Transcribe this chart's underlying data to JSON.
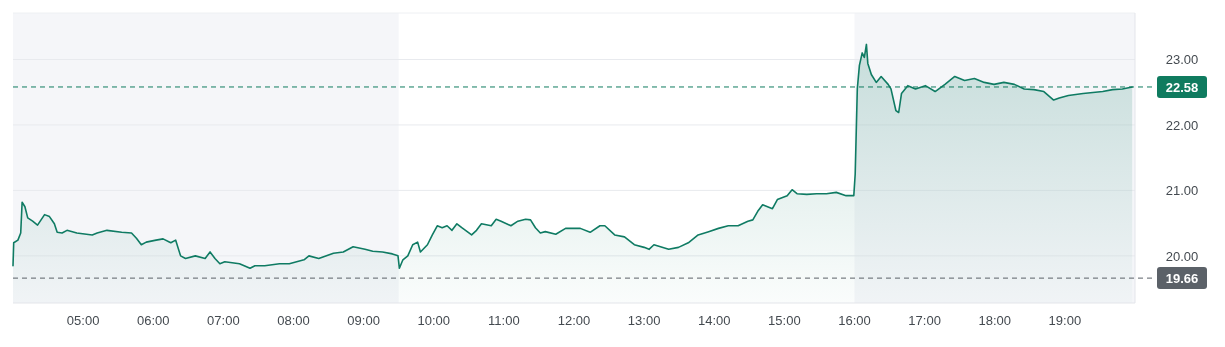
{
  "chart_data": {
    "type": "area",
    "xlim": [
      4,
      20
    ],
    "xticks": [
      {
        "value": 5,
        "label": "05:00"
      },
      {
        "value": 6,
        "label": "06:00"
      },
      {
        "value": 7,
        "label": "07:00"
      },
      {
        "value": 8,
        "label": "08:00"
      },
      {
        "value": 9,
        "label": "09:00"
      },
      {
        "value": 10,
        "label": "10:00"
      },
      {
        "value": 11,
        "label": "11:00"
      },
      {
        "value": 12,
        "label": "12:00"
      },
      {
        "value": 13,
        "label": "13:00"
      },
      {
        "value": 14,
        "label": "14:00"
      },
      {
        "value": 15,
        "label": "15:00"
      },
      {
        "value": 16,
        "label": "16:00"
      },
      {
        "value": 17,
        "label": "17:00"
      },
      {
        "value": 18,
        "label": "18:00"
      },
      {
        "value": 19,
        "label": "19:00"
      }
    ],
    "ylim": [
      19.28,
      23.71
    ],
    "yticks": [
      {
        "value": 20,
        "label": "20.00"
      },
      {
        "value": 21,
        "label": "21.00"
      },
      {
        "value": 22,
        "label": "22.00"
      },
      {
        "value": 23,
        "label": "23.00"
      }
    ],
    "grid": "y",
    "bands": [
      {
        "axis": "x",
        "from": 4,
        "to": 9.5,
        "color": "#f5f6f9"
      },
      {
        "axis": "x",
        "from": 16,
        "to": 20,
        "color": "#f5f6f9"
      }
    ],
    "ref_lines": [
      {
        "axis": "y",
        "value": 22.58,
        "label": "22.58",
        "color": "#0f7b5f"
      },
      {
        "axis": "y",
        "value": 19.66,
        "label": "19.66",
        "color": "#5b6168"
      }
    ],
    "series": [
      {
        "color": "#0f7b63",
        "x": [
          4.0,
          4.01,
          4.07,
          4.11,
          4.13,
          4.17,
          4.21,
          4.28,
          4.35,
          4.45,
          4.52,
          4.59,
          4.63,
          4.7,
          4.77,
          4.91,
          5.13,
          5.2,
          5.34,
          5.55,
          5.69,
          5.76,
          5.83,
          5.9,
          6.04,
          6.14,
          6.25,
          6.32,
          6.39,
          6.46,
          6.6,
          6.74,
          6.81,
          6.88,
          6.95,
          7.02,
          7.23,
          7.38,
          7.45,
          7.59,
          7.8,
          7.94,
          8.15,
          8.22,
          8.36,
          8.57,
          8.71,
          8.85,
          9.02,
          9.13,
          9.27,
          9.41,
          9.49,
          9.51,
          9.56,
          9.63,
          9.7,
          9.77,
          9.81,
          9.91,
          9.98,
          10.05,
          10.12,
          10.19,
          10.26,
          10.33,
          10.4,
          10.54,
          10.61,
          10.68,
          10.82,
          10.89,
          10.96,
          11.1,
          11.2,
          11.31,
          11.38,
          11.45,
          11.52,
          11.59,
          11.74,
          11.88,
          12.09,
          12.23,
          12.37,
          12.44,
          12.58,
          12.72,
          12.86,
          13.0,
          13.07,
          13.14,
          13.35,
          13.49,
          13.63,
          13.77,
          13.92,
          14.06,
          14.2,
          14.34,
          14.48,
          14.55,
          14.62,
          14.69,
          14.76,
          14.83,
          14.9,
          15.04,
          15.11,
          15.18,
          15.32,
          15.46,
          15.6,
          15.74,
          15.88,
          15.99,
          16.01,
          16.04,
          16.07,
          16.11,
          16.14,
          16.17,
          16.19,
          16.24,
          16.31,
          16.38,
          16.48,
          16.52,
          16.59,
          16.63,
          16.67,
          16.76,
          16.87,
          17.01,
          17.15,
          17.29,
          17.43,
          17.57,
          17.71,
          17.85,
          17.99,
          18.13,
          18.28,
          18.42,
          18.56,
          18.7,
          18.84,
          18.92,
          19.05,
          19.26,
          19.54,
          19.68,
          19.82,
          19.96
        ],
        "values": [
          19.85,
          20.2,
          20.24,
          20.35,
          20.82,
          20.75,
          20.58,
          20.53,
          20.47,
          20.63,
          20.6,
          20.49,
          20.36,
          20.35,
          20.39,
          20.35,
          20.32,
          20.35,
          20.39,
          20.36,
          20.35,
          20.27,
          20.17,
          20.21,
          20.24,
          20.26,
          20.2,
          20.24,
          20.0,
          19.96,
          20.0,
          19.96,
          20.06,
          19.96,
          19.88,
          19.91,
          19.88,
          19.81,
          19.85,
          19.85,
          19.88,
          19.88,
          19.94,
          20.0,
          19.96,
          20.04,
          20.06,
          20.14,
          20.1,
          20.07,
          20.06,
          20.03,
          20.0,
          19.81,
          19.94,
          20.0,
          20.17,
          20.21,
          20.06,
          20.17,
          20.32,
          20.46,
          20.43,
          20.46,
          20.39,
          20.49,
          20.43,
          20.32,
          20.39,
          20.49,
          20.46,
          20.56,
          20.53,
          20.46,
          20.53,
          20.56,
          20.55,
          20.43,
          20.35,
          20.37,
          20.33,
          20.42,
          20.42,
          20.36,
          20.46,
          20.46,
          20.32,
          20.29,
          20.17,
          20.13,
          20.1,
          20.17,
          20.1,
          20.13,
          20.2,
          20.32,
          20.37,
          20.42,
          20.46,
          20.46,
          20.53,
          20.55,
          20.68,
          20.78,
          20.75,
          20.72,
          20.86,
          20.92,
          21.01,
          20.95,
          20.94,
          20.95,
          20.95,
          20.97,
          20.92,
          20.92,
          21.25,
          22.55,
          22.91,
          23.1,
          23.03,
          23.23,
          22.94,
          22.77,
          22.65,
          22.74,
          22.62,
          22.55,
          22.22,
          22.19,
          22.48,
          22.6,
          22.55,
          22.6,
          22.51,
          22.62,
          22.74,
          22.68,
          22.71,
          22.65,
          22.62,
          22.65,
          22.62,
          22.55,
          22.54,
          22.51,
          22.38,
          22.41,
          22.45,
          22.48,
          22.51,
          22.54,
          22.55,
          22.58
        ]
      }
    ]
  }
}
